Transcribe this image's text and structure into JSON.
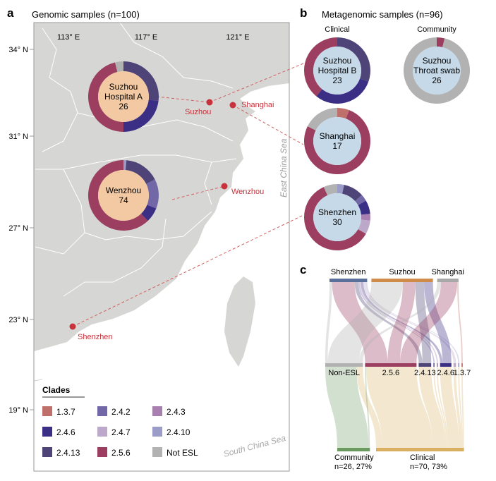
{
  "panel_a": {
    "letter": "a",
    "title": "Genomic samples (n=100)"
  },
  "panel_b": {
    "letter": "b",
    "title": "Metagenomic samples (n=96)",
    "col_clinical": "Clinical",
    "col_community": "Community"
  },
  "panel_c": {
    "letter": "c"
  },
  "map": {
    "lon_ticks": [
      "113° E",
      "117° E",
      "121° E"
    ],
    "lat_ticks": [
      "34° N",
      "31° N",
      "27° N",
      "23° N",
      "19° N"
    ],
    "cities": [
      "Suzhou",
      "Shanghai",
      "Wenzhou",
      "Shenzhen"
    ],
    "seas": [
      "East China Sea",
      "South China Sea"
    ],
    "land_color": "#d6d6d4",
    "city_color": "#c8323c"
  },
  "legend": {
    "title": "Clades",
    "items": [
      {
        "label": "1.3.7",
        "color": "#c0706a"
      },
      {
        "label": "2.4.2",
        "color": "#7268a8"
      },
      {
        "label": "2.4.3",
        "color": "#a880b0"
      },
      {
        "label": "2.4.6",
        "color": "#3a2e85"
      },
      {
        "label": "2.4.7",
        "color": "#bca8c8"
      },
      {
        "label": "2.4.10",
        "color": "#9c9cc8"
      },
      {
        "label": "2.4.13",
        "color": "#4e4478"
      },
      {
        "label": "2.5.6",
        "color": "#9c3e60"
      },
      {
        "label": "Not ESL",
        "color": "#b2b2b2"
      }
    ]
  },
  "chart_data": [
    {
      "type": "pie",
      "subtype": "donut",
      "panel": "a",
      "name": [
        "Suzhou",
        "Hospital A"
      ],
      "total": "26",
      "slices": [
        {
          "clade": "2.4.13",
          "value": 7
        },
        {
          "clade": "2.4.6",
          "value": 6
        },
        {
          "clade": "2.5.6",
          "value": 12
        },
        {
          "clade": "Not ESL",
          "value": 1
        }
      ]
    },
    {
      "type": "pie",
      "subtype": "donut",
      "panel": "a",
      "name": [
        "Wenzhou"
      ],
      "total": "74",
      "slices": [
        {
          "clade": "2.4.10",
          "value": 1
        },
        {
          "clade": "2.4.13",
          "value": 12
        },
        {
          "clade": "2.4.2",
          "value": 10
        },
        {
          "clade": "2.4.6",
          "value": 5
        },
        {
          "clade": "2.5.6",
          "value": 46
        }
      ]
    },
    {
      "type": "pie",
      "subtype": "donut",
      "panel": "b",
      "name": [
        "Suzhou",
        "Hospital B"
      ],
      "total": "23",
      "slices": [
        {
          "clade": "2.4.13",
          "value": 7
        },
        {
          "clade": "2.4.6",
          "value": 7
        },
        {
          "clade": "2.5.6",
          "value": 9
        }
      ]
    },
    {
      "type": "pie",
      "subtype": "donut",
      "panel": "b",
      "name": [
        "Suzhou",
        "Throat swab"
      ],
      "total": "26",
      "slices": [
        {
          "clade": "2.5.6",
          "value": 1
        },
        {
          "clade": "Not ESL",
          "value": 25
        }
      ]
    },
    {
      "type": "pie",
      "subtype": "donut",
      "panel": "b",
      "name": [
        "Shanghai"
      ],
      "total": "17",
      "slices": [
        {
          "clade": "1.3.7",
          "value": 1
        },
        {
          "clade": "2.5.6",
          "value": 13
        },
        {
          "clade": "Not ESL",
          "value": 3
        }
      ]
    },
    {
      "type": "pie",
      "subtype": "donut",
      "panel": "b",
      "name": [
        "Shenzhen"
      ],
      "total": "30",
      "slices": [
        {
          "clade": "2.4.10",
          "value": 1
        },
        {
          "clade": "2.4.13",
          "value": 3
        },
        {
          "clade": "2.4.2",
          "value": 1
        },
        {
          "clade": "2.4.6",
          "value": 2
        },
        {
          "clade": "2.4.3",
          "value": 1
        },
        {
          "clade": "2.4.7",
          "value": 2
        },
        {
          "clade": "2.5.6",
          "value": 18
        },
        {
          "clade": "Not ESL",
          "value": 2
        }
      ]
    },
    {
      "type": "sankey",
      "panel": "c",
      "top_nodes": [
        {
          "id": "Shenzhen",
          "label": "Shenzhen",
          "color": "#5a6f99"
        },
        {
          "id": "Suzhou",
          "label": "Suzhou",
          "color": "#d08a4a"
        },
        {
          "id": "Shanghai",
          "label": "Shanghai",
          "color": "#a8a8a8"
        }
      ],
      "mid_nodes": [
        {
          "id": "Not ESL",
          "label": "Non-ESL"
        },
        {
          "id": "2.5.6",
          "label": "2.5.6"
        },
        {
          "id": "2.4.13",
          "label": "2.4.13"
        },
        {
          "id": "2.4.2",
          "label": ""
        },
        {
          "id": "2.4.3",
          "label": ""
        },
        {
          "id": "2.4.6",
          "label": "2.4.6"
        },
        {
          "id": "2.4.7",
          "label": ""
        },
        {
          "id": "2.4.10",
          "label": ""
        },
        {
          "id": "1.3.7",
          "label": "1.3.7"
        }
      ],
      "bottom_nodes": [
        {
          "id": "Community",
          "label": "Community",
          "sub": "n=26, 27%",
          "color": "#6a9a60"
        },
        {
          "id": "Clinical",
          "label": "Clinical",
          "sub": "n=70, 73%",
          "color": "#d8b060"
        }
      ],
      "links_top": [
        [
          "Shenzhen",
          "Not ESL",
          2
        ],
        [
          "Shenzhen",
          "2.5.6",
          18
        ],
        [
          "Shenzhen",
          "2.4.13",
          3
        ],
        [
          "Shenzhen",
          "2.4.2",
          1
        ],
        [
          "Shenzhen",
          "2.4.3",
          1
        ],
        [
          "Shenzhen",
          "2.4.6",
          2
        ],
        [
          "Shenzhen",
          "2.4.7",
          2
        ],
        [
          "Shenzhen",
          "2.4.10",
          1
        ],
        [
          "Suzhou",
          "Not ESL",
          25
        ],
        [
          "Suzhou",
          "2.5.6",
          10
        ],
        [
          "Suzhou",
          "2.4.13",
          7
        ],
        [
          "Suzhou",
          "2.4.6",
          7
        ],
        [
          "Shanghai",
          "Not ESL",
          3
        ],
        [
          "Shanghai",
          "2.5.6",
          13
        ],
        [
          "Shanghai",
          "1.3.7",
          1
        ]
      ],
      "links_bottom": [
        [
          "Not ESL",
          "Community",
          25
        ],
        [
          "Not ESL",
          "Clinical",
          5
        ],
        [
          "2.5.6",
          "Community",
          1
        ],
        [
          "2.5.6",
          "Clinical",
          40
        ],
        [
          "2.4.13",
          "Clinical",
          10
        ],
        [
          "2.4.2",
          "Clinical",
          1
        ],
        [
          "2.4.3",
          "Clinical",
          1
        ],
        [
          "2.4.6",
          "Clinical",
          9
        ],
        [
          "2.4.7",
          "Clinical",
          2
        ],
        [
          "2.4.10",
          "Clinical",
          1
        ],
        [
          "1.3.7",
          "Clinical",
          1
        ]
      ]
    }
  ]
}
